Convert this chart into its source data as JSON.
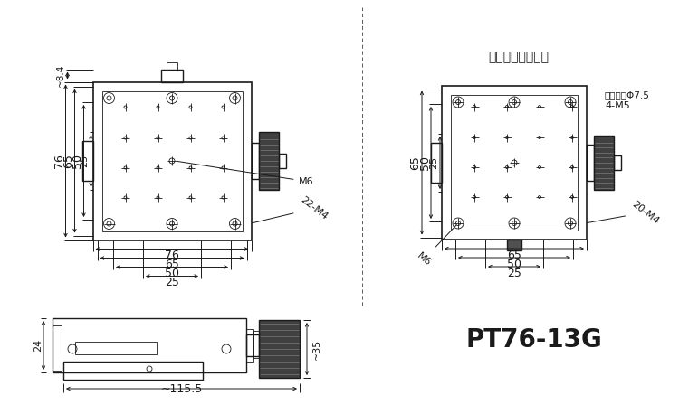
{
  "bg_color": "#ffffff",
  "line_color": "#1a1a1a",
  "title": "PT76-13G",
  "title_fontsize": 20,
  "title_fontweight": "bold",
  "bottom_text": "底面安装孔示意图",
  "note1": "4-M5",
  "note2": "反面沉孔Φ7.5",
  "dim115": "~115.5",
  "dim24": "24",
  "dim35": "~35",
  "dim76h": "76",
  "dim65h_top": "65",
  "dim50h_top": "50",
  "dim25h_top": "25",
  "dim76v": "76",
  "dim65v": "65",
  "dim50v": "50",
  "dim25v": "25",
  "dim84": "~8.4",
  "label22m4": "22-M4",
  "labelM6": "M6",
  "label20m4": "20-M4",
  "labelM6r": "M6"
}
